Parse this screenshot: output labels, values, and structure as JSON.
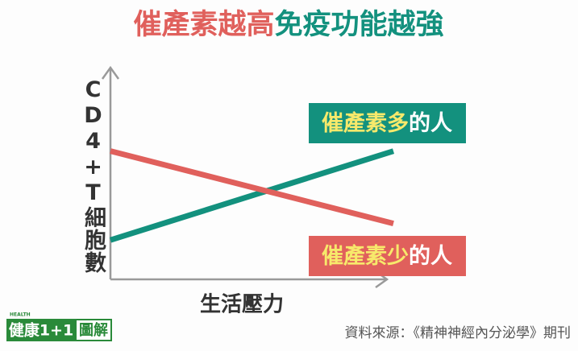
{
  "chart_data": {
    "type": "line",
    "title": "催產素越高免疫功能越強",
    "x_label": "生活壓力",
    "y_label": "CD4+T細胞數",
    "x": [
      0,
      1
    ],
    "xlim": [
      0,
      1
    ],
    "ylim": [
      0,
      1
    ],
    "series": [
      {
        "name": "催產素多的人",
        "color": "#13917e",
        "values": [
          0.19,
          0.62
        ]
      },
      {
        "name": "催產素少的人",
        "color": "#e0605c",
        "values": [
          0.62,
          0.27
        ]
      }
    ]
  },
  "source": "資料來源：《精神神經內分泌學》期刊",
  "logo": {
    "badge": "HEALTH",
    "brand": "健康1+1",
    "suffix": "圖解"
  }
}
